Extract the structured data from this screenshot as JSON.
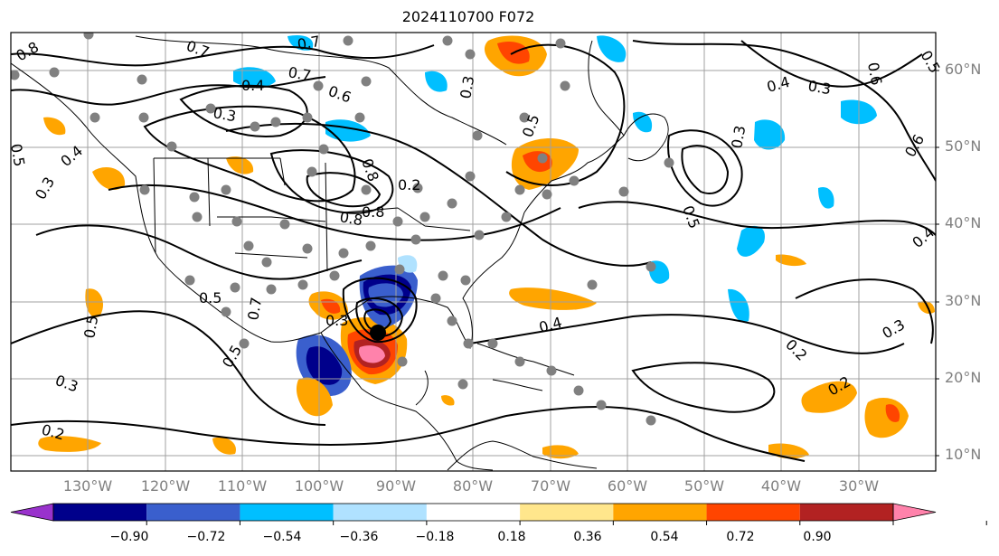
{
  "title": "2024110700 F072",
  "lat_labels": [
    "60°N",
    "50°N",
    "40°N",
    "30°N",
    "20°N",
    "10°N"
  ],
  "lon_labels": [
    "130°W",
    "120°W",
    "110°W",
    "100°W",
    "90°W",
    "80°W",
    "70°W",
    "60°W",
    "50°W",
    "40°W",
    "30°W"
  ],
  "contour_labels": [
    "0.8",
    "0.7",
    "0.7",
    "0.6",
    "0.4",
    "0.3",
    "0.5",
    "0.4",
    "0.3",
    "0.8",
    "0.8",
    "0.3",
    "0.7",
    "0.4",
    "0.3",
    "0.5",
    "0.6",
    "0.3",
    "0.5",
    "0.4",
    "0.2",
    "0.3",
    "0.2",
    "0.4",
    "0.3",
    "0.5",
    "0.2",
    "0.8",
    "0.6",
    "0.5",
    "0.7",
    "0.3",
    "0.5",
    "0.5",
    "0.2"
  ],
  "colorbar": {
    "ticks": [
      "−0.90",
      "−0.72",
      "−0.54",
      "−0.36",
      "−0.18",
      "0.18",
      "0.36",
      "0.54",
      "0.72",
      "0.90"
    ],
    "colors": [
      "#9932cc",
      "#00008b",
      "#3a5fcd",
      "#00bfff",
      "#b0e2ff",
      "#ffffff",
      "#ffe68c",
      "#ffa500",
      "#ff4500",
      "#b22222",
      "#ff82ab"
    ]
  },
  "colors": {
    "contour": "#000000",
    "coast": "#000000",
    "grid": "#a0a0a0",
    "station": "#808080",
    "center": "#000000"
  }
}
